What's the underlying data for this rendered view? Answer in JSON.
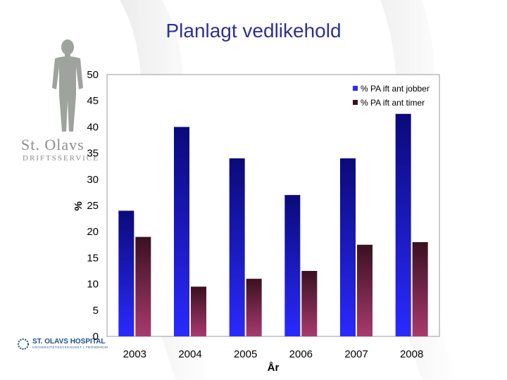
{
  "slide": {
    "title": "Planlagt vedlikehold",
    "logo_top": {
      "brand": "St. Olavs",
      "sub": "DRIFTSSERVICE"
    },
    "logo_bottom": {
      "name": "ST. OLAVS HOSPITAL",
      "sub": "UNIVERSITETSSYKEHUSET I TRONDHEIM"
    }
  },
  "colors": {
    "series1_top": "#0a0a7a",
    "series1_bottom": "#2a2aff",
    "series2_top": "#3a1020",
    "series2_bottom": "#a83a6e",
    "title": "#2e3192"
  },
  "chart_data": {
    "type": "bar",
    "title": "",
    "xlabel": "År",
    "ylabel": "%",
    "ylim": [
      0,
      50
    ],
    "yticks": [
      0,
      5,
      10,
      15,
      20,
      25,
      30,
      35,
      40,
      45,
      50
    ],
    "categories": [
      "2003",
      "2004",
      "2005",
      "2006",
      "2007",
      "2008"
    ],
    "series": [
      {
        "name": "% PA ift ant jobber",
        "values": [
          24,
          40,
          34,
          27,
          34,
          42.5
        ]
      },
      {
        "name": "% PA ift ant timer",
        "values": [
          19,
          9.5,
          11,
          12.5,
          17.5,
          18
        ]
      }
    ],
    "legend_position": "top-right",
    "grid": false
  }
}
